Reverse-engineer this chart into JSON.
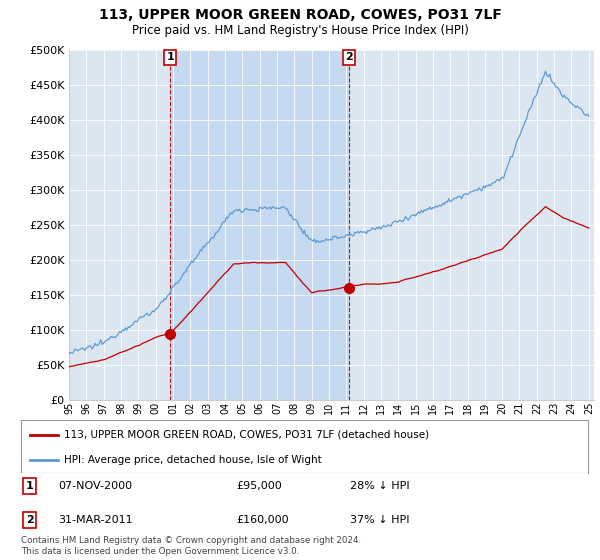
{
  "title": "113, UPPER MOOR GREEN ROAD, COWES, PO31 7LF",
  "subtitle": "Price paid vs. HM Land Registry's House Price Index (HPI)",
  "legend_line1": "113, UPPER MOOR GREEN ROAD, COWES, PO31 7LF (detached house)",
  "legend_line2": "HPI: Average price, detached house, Isle of Wight",
  "transaction1_date": "07-NOV-2000",
  "transaction1_price": "£95,000",
  "transaction1_hpi": "28% ↓ HPI",
  "transaction2_date": "31-MAR-2011",
  "transaction2_price": "£160,000",
  "transaction2_hpi": "37% ↓ HPI",
  "footer": "Contains HM Land Registry data © Crown copyright and database right 2024.\nThis data is licensed under the Open Government Licence v3.0.",
  "hpi_color": "#5b9bd5",
  "price_color": "#c00000",
  "marker_color": "#c00000",
  "vline_color": "#c00000",
  "bg_color": "#ffffff",
  "plot_bg_color": "#dce6f1",
  "shade_color": "#c5d9f1",
  "grid_color": "#ffffff",
  "ylim": [
    0,
    500000
  ],
  "yticks": [
    0,
    50000,
    100000,
    150000,
    200000,
    250000,
    300000,
    350000,
    400000,
    450000,
    500000
  ]
}
